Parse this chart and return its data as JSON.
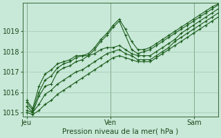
{
  "title": "Pression niveau de la mer( hPa )",
  "bg_color": "#c8e8d8",
  "grid_color": "#a0c8b0",
  "line_color": "#1a5c1a",
  "xtick_labels": [
    "Jeu",
    "Ven",
    "Sam"
  ],
  "xtick_positions": [
    0,
    0.4375,
    0.875
  ],
  "ylim": [
    1014.8,
    1020.4
  ],
  "yticks": [
    1015,
    1016,
    1017,
    1018,
    1019
  ],
  "vline_positions": [
    0,
    0.4375,
    0.875
  ],
  "series": [
    [
      1015.3,
      1015.0,
      1015.8,
      1016.3,
      1016.4,
      1017.0,
      1017.2,
      1017.3,
      1017.5,
      1017.6,
      1017.8,
      1018.1,
      1018.5,
      1018.8,
      1019.2,
      1019.5,
      1018.8,
      1018.1,
      1017.9,
      1018.0,
      1018.1,
      1018.3,
      1018.5,
      1018.7,
      1018.9,
      1019.1,
      1019.3,
      1019.5,
      1019.7,
      1019.9,
      1020.1,
      1020.3
    ],
    [
      1015.5,
      1015.1,
      1016.0,
      1016.6,
      1016.8,
      1017.2,
      1017.4,
      1017.5,
      1017.7,
      1017.8,
      1017.9,
      1018.2,
      1018.6,
      1018.9,
      1019.3,
      1019.6,
      1019.1,
      1018.5,
      1018.1,
      1018.1,
      1018.2,
      1018.4,
      1018.6,
      1018.8,
      1019.0,
      1019.2,
      1019.4,
      1019.6,
      1019.8,
      1020.0,
      1020.2,
      1020.35
    ],
    [
      1015.6,
      1015.2,
      1016.3,
      1016.9,
      1017.1,
      1017.4,
      1017.5,
      1017.6,
      1017.8,
      1017.8,
      1017.8,
      1017.9,
      1018.1,
      1018.2,
      1018.2,
      1018.3,
      1018.1,
      1017.9,
      1017.8,
      1017.8,
      1017.8,
      1018.0,
      1018.2,
      1018.4,
      1018.6,
      1018.9,
      1019.1,
      1019.3,
      1019.5,
      1019.7,
      1019.9,
      1020.1
    ],
    [
      1015.1,
      1015.0,
      1015.4,
      1015.9,
      1016.1,
      1016.4,
      1016.6,
      1016.8,
      1017.0,
      1017.1,
      1017.3,
      1017.5,
      1017.7,
      1017.9,
      1018.0,
      1018.1,
      1017.9,
      1017.8,
      1017.6,
      1017.6,
      1017.6,
      1017.8,
      1018.0,
      1018.2,
      1018.5,
      1018.7,
      1018.9,
      1019.1,
      1019.3,
      1019.5,
      1019.7,
      1019.9
    ],
    [
      1015.0,
      1014.9,
      1015.1,
      1015.4,
      1015.6,
      1015.9,
      1016.1,
      1016.3,
      1016.5,
      1016.7,
      1016.9,
      1017.1,
      1017.3,
      1017.5,
      1017.7,
      1017.8,
      1017.7,
      1017.6,
      1017.5,
      1017.5,
      1017.5,
      1017.7,
      1017.9,
      1018.1,
      1018.3,
      1018.5,
      1018.7,
      1018.9,
      1019.1,
      1019.3,
      1019.5,
      1019.7
    ]
  ]
}
